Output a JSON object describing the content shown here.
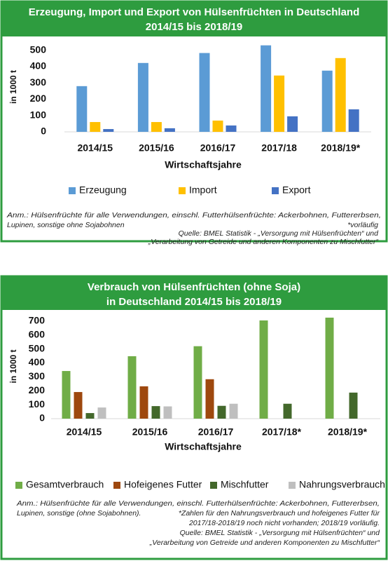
{
  "chart_data": [
    {
      "type": "bar",
      "title": "Erzeugung, Import und Export von Hülsenfrüchten in Deutschland",
      "subtitle": "2014/15 bis 2018/19",
      "y_label": "in 1000 t",
      "x_label": "Wirtschaftsjahre",
      "categories": [
        "2014/15",
        "2015/16",
        "2016/17",
        "2017/18",
        "2018/19*"
      ],
      "series": [
        {
          "name": "Erzeugung",
          "color": "#5b9bd5",
          "values": [
            280,
            422,
            483,
            530,
            375
          ]
        },
        {
          "name": "Import",
          "color": "#ffc000",
          "values": [
            60,
            60,
            69,
            345,
            452
          ]
        },
        {
          "name": "Export",
          "color": "#4472c4",
          "values": [
            17,
            22,
            39,
            95,
            138
          ]
        }
      ],
      "ylim": [
        0,
        550
      ],
      "yticks": [
        0,
        100,
        200,
        300,
        400,
        500
      ],
      "grid": false,
      "annotations": [
        "Anm.: Hülsenfrüchte für alle Verwendungen, einschl. Futterhülsenfrüchte: Ackerbohnen, Futtererbsen,",
        "Lupinen, sonstige ohne Sojabohnen",
        "*vorläufig",
        "Quelle: BMEL Statistik - „Versorgung mit Hülsenfrüchten“ und",
        "„Verarbeitung von Getreide und anderen Komponenten zu Mischfutter“"
      ]
    },
    {
      "type": "bar",
      "title": "Verbrauch von Hülsenfrüchten (ohne Soja)",
      "subtitle": "in Deutschland  2014/15 bis 2018/19",
      "y_label": "in 1000 t",
      "x_label": "Wirtschaftsjahre",
      "categories": [
        "2014/15",
        "2015/16",
        "2016/17",
        "2017/18*",
        "2018/19*"
      ],
      "series": [
        {
          "name": "Gesamtverbrauch",
          "color": "#70ad47",
          "values": [
            342,
            448,
            520,
            705,
            725
          ]
        },
        {
          "name": "Hofeigenes Futter",
          "color": "#9e480e",
          "values": [
            191,
            232,
            283,
            null,
            null
          ]
        },
        {
          "name": "Mischfutter",
          "color": "#43682b",
          "values": [
            40,
            90,
            92,
            107,
            187
          ]
        },
        {
          "name": "Nahrungsverbrauch",
          "color": "#bfbfbf",
          "values": [
            80,
            88,
            107,
            null,
            null
          ]
        }
      ],
      "ylim": [
        0,
        750
      ],
      "yticks": [
        0,
        100,
        200,
        300,
        400,
        500,
        600,
        700
      ],
      "grid": false,
      "annotations": [
        "Anm.: Hülsenfrüchte für alle Verwendungen, einschl. Futterhülsenfrüchte: Ackerbohnen, Futtererbsen,",
        "Lupinen, sonstige (ohne Sojabohnen).",
        "*Zahlen für den Nahrungsverbrauch und hofeigenes Futter für",
        "2017/18-2018/19 noch nicht vorhanden; 2018/19 vorläufig.",
        "Quelle: BMEL Statistik - „Versorgung mit Hülsenfrüchten“ und",
        "„Verarbeitung von Getreide und anderen Komponenten zu Mischfutter“"
      ]
    }
  ]
}
